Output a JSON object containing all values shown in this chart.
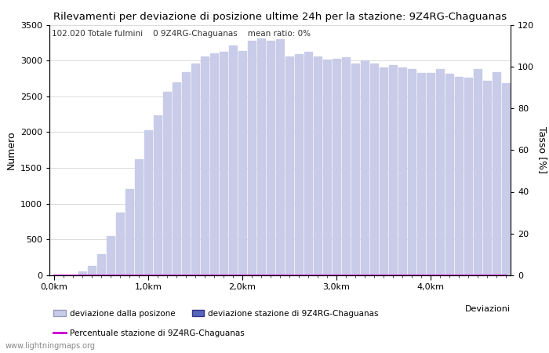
{
  "title": "Rilevamenti per deviazione di posizione ultime 24h per la stazione: 9Z4RG-Chaguanas",
  "ylabel_left": "Numero",
  "ylabel_right": "Tasso [%]",
  "info_text": "102.020 Totale fulmini    0 9Z4RG-Chaguanas    mean ratio: 0%",
  "bar_values": [
    0,
    0,
    0,
    50,
    130,
    300,
    550,
    880,
    1200,
    1620,
    2030,
    2230,
    2560,
    2690,
    2840,
    2960,
    3060,
    3100,
    3120,
    3210,
    3130,
    3280,
    3310,
    3280,
    3300,
    3060,
    3090,
    3120,
    3060,
    3010,
    3020,
    3040,
    2960,
    3000,
    2960,
    2900,
    2940,
    2900,
    2880,
    2830,
    2830,
    2880,
    2820,
    2770,
    2760,
    2880,
    2720,
    2840,
    2680
  ],
  "station_bar_values": [
    0,
    0,
    0,
    0,
    0,
    0,
    0,
    0,
    0,
    0,
    0,
    0,
    0,
    0,
    0,
    0,
    0,
    0,
    0,
    0,
    0,
    0,
    0,
    0,
    0,
    0,
    0,
    0,
    0,
    0,
    0,
    0,
    0,
    0,
    0,
    0,
    0,
    0,
    0,
    0,
    0,
    0,
    0,
    0,
    0,
    0,
    0,
    0,
    0
  ],
  "ylim_left": [
    0,
    3500
  ],
  "ylim_right": [
    0,
    120
  ],
  "yticks_left": [
    0,
    500,
    1000,
    1500,
    2000,
    2500,
    3000,
    3500
  ],
  "yticks_right": [
    0,
    20,
    40,
    60,
    80,
    100,
    120
  ],
  "bar_color_light": "#c8cce8",
  "bar_color_dark": "#5566bb",
  "line_color": "#cc00cc",
  "grid_color": "#cccccc",
  "bg_color": "#ffffff",
  "legend_label_light": "deviazione dalla posizone",
  "legend_label_dark": "deviazione stazione di 9Z4RG-Chaguanas",
  "legend_label_line": "Percentuale stazione di 9Z4RG-Chaguanas",
  "watermark": "www.lightningmaps.org",
  "n_bars": 49
}
